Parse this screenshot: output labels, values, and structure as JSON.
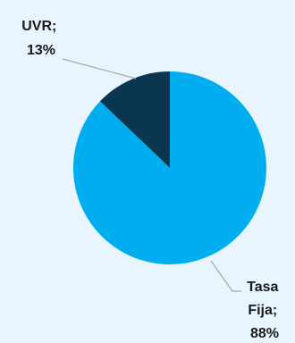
{
  "chart_data": {
    "type": "pie",
    "slices": [
      {
        "label": "UVR",
        "value": 13,
        "display": "13%",
        "color": "#0a3650"
      },
      {
        "label": "Tasa Fija",
        "value": 88,
        "display": "88%",
        "color": "#00aeef"
      }
    ],
    "title": "",
    "legend": "none",
    "label_style": "category; percent"
  },
  "labels": {
    "uvr_line1": "UVR;",
    "uvr_line2": "13%",
    "fija_line1": "Tasa",
    "fija_line2": "Fija;",
    "fija_line3": "88%"
  },
  "colors": {
    "background": "#e9f5fc",
    "leader_line": "#a6a6a6"
  }
}
